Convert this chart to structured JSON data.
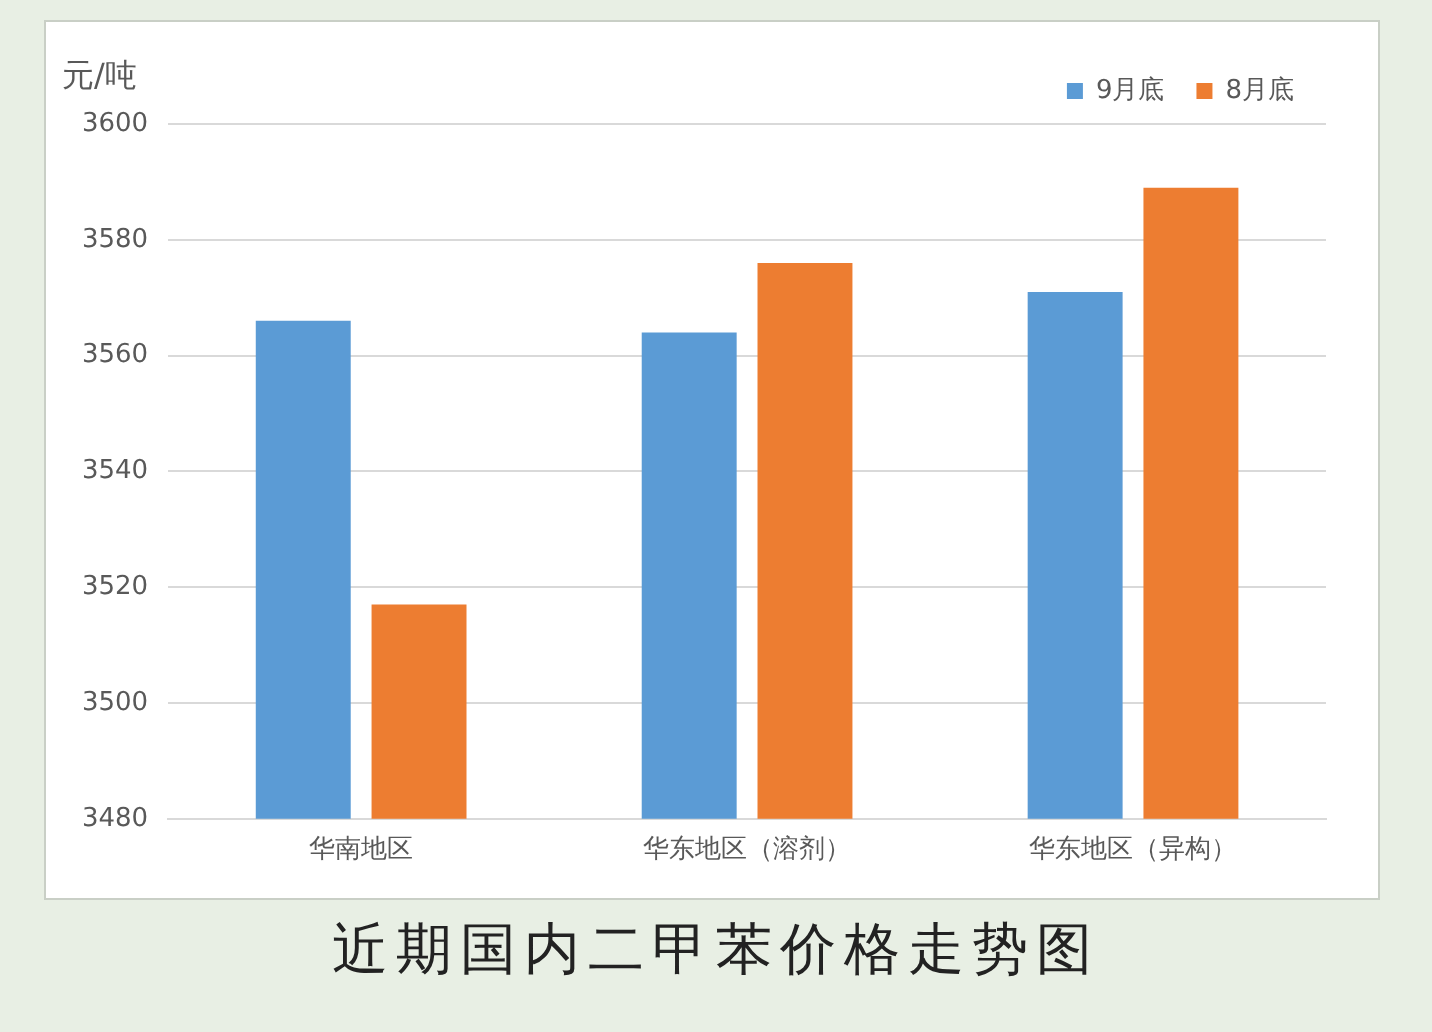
{
  "chart_data": {
    "type": "bar",
    "title": "近期国内二甲苯价格走势图",
    "ylabel": "元/吨",
    "categories": [
      "华南地区",
      "华东地区（溶剂）",
      "华东地区（异构）"
    ],
    "series": [
      {
        "name": "9月底",
        "color": "#5b9bd5",
        "values": [
          3566,
          3564,
          3571
        ]
      },
      {
        "name": "8月底",
        "color": "#ed7d31",
        "values": [
          3517,
          3576,
          3589
        ]
      }
    ],
    "ylim": [
      3480,
      3600
    ],
    "yticks": [
      3480,
      3500,
      3520,
      3540,
      3560,
      3580,
      3600
    ],
    "grid": "y",
    "legend": "top right"
  }
}
